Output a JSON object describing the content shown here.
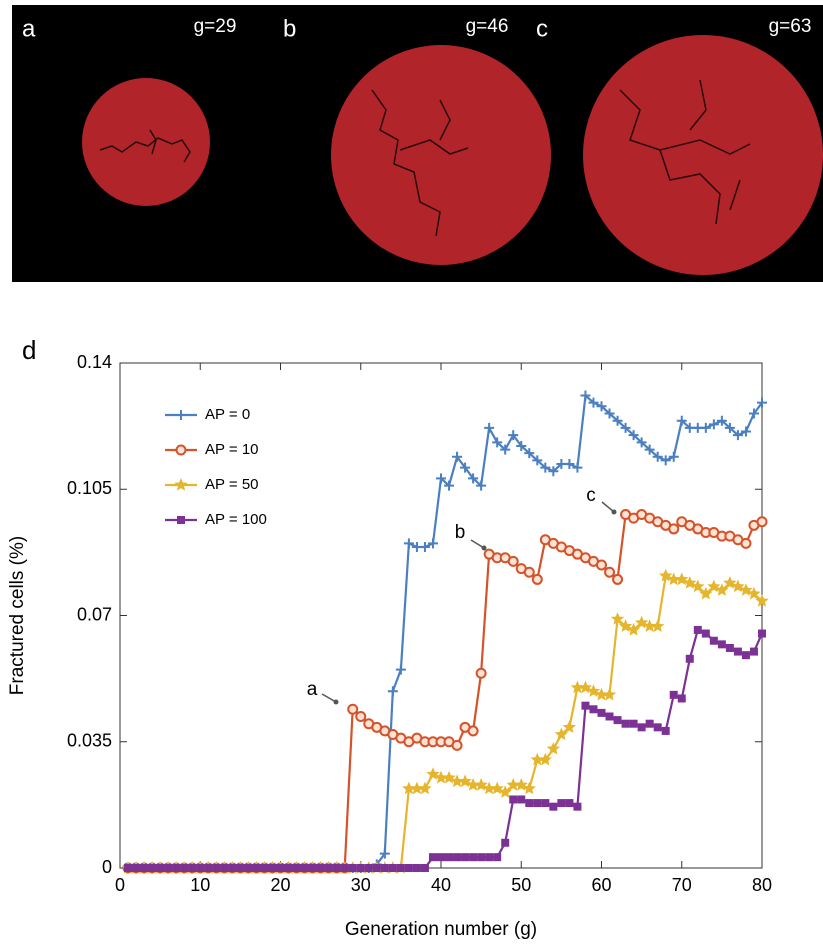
{
  "panels": [
    {
      "label": "a",
      "generation": "g=29"
    },
    {
      "label": "b",
      "generation": "g=46"
    },
    {
      "label": "c",
      "generation": "g=63"
    }
  ],
  "chart_data": {
    "type": "line",
    "panel_label": "d",
    "xlabel": "Generation number (g)",
    "ylabel": "Fractured cells (%)",
    "xlim": [
      0,
      80
    ],
    "ylim": [
      0,
      0.14
    ],
    "xticks": [
      0,
      10,
      20,
      30,
      40,
      50,
      60,
      70,
      80
    ],
    "yticks": [
      0,
      0.035,
      0.07,
      0.105,
      0.14
    ],
    "legend": "upper left",
    "annotations": [
      "a",
      "b",
      "c"
    ],
    "x": [
      1,
      2,
      3,
      4,
      5,
      6,
      7,
      8,
      9,
      10,
      11,
      12,
      13,
      14,
      15,
      16,
      17,
      18,
      19,
      20,
      21,
      22,
      23,
      24,
      25,
      26,
      27,
      28,
      29,
      30,
      31,
      32,
      33,
      34,
      35,
      36,
      37,
      38,
      39,
      40,
      41,
      42,
      43,
      44,
      45,
      46,
      47,
      48,
      49,
      50,
      51,
      52,
      53,
      54,
      55,
      56,
      57,
      58,
      59,
      60,
      61,
      62,
      63,
      64,
      65,
      66,
      67,
      68,
      69,
      70,
      71,
      72,
      73,
      74,
      75,
      76,
      77,
      78,
      79,
      80
    ],
    "series": [
      {
        "name": "AP = 0",
        "color": "#4a7fc1",
        "marker": "plus",
        "values": [
          0,
          0,
          0,
          0,
          0,
          0,
          0,
          0,
          0,
          0,
          0,
          0,
          0,
          0,
          0,
          0,
          0,
          0,
          0,
          0,
          0,
          0,
          0,
          0,
          0,
          0,
          0,
          0,
          0,
          0,
          0,
          0.001,
          0.004,
          0.049,
          0.055,
          0.09,
          0.089,
          0.089,
          0.09,
          0.108,
          0.106,
          0.114,
          0.111,
          0.108,
          0.106,
          0.122,
          0.118,
          0.116,
          0.12,
          0.117,
          0.115,
          0.113,
          0.111,
          0.11,
          0.112,
          0.112,
          0.111,
          0.131,
          0.129,
          0.128,
          0.126,
          0.124,
          0.122,
          0.12,
          0.118,
          0.116,
          0.114,
          0.113,
          0.114,
          0.124,
          0.122,
          0.122,
          0.122,
          0.123,
          0.124,
          0.122,
          0.12,
          0.121,
          0.126,
          0.129
        ]
      },
      {
        "name": "AP = 10",
        "color": "#d4532a",
        "marker": "circle",
        "values": [
          0,
          0,
          0,
          0,
          0,
          0,
          0,
          0,
          0,
          0,
          0,
          0,
          0,
          0,
          0,
          0,
          0,
          0,
          0,
          0,
          0,
          0,
          0,
          0,
          0,
          0,
          0,
          0,
          0.044,
          0.042,
          0.04,
          0.039,
          0.038,
          0.037,
          0.036,
          0.035,
          0.036,
          0.035,
          0.035,
          0.035,
          0.035,
          0.034,
          0.039,
          0.038,
          0.054,
          0.087,
          0.086,
          0.086,
          0.085,
          0.083,
          0.082,
          0.08,
          0.091,
          0.09,
          0.089,
          0.088,
          0.087,
          0.086,
          0.085,
          0.084,
          0.082,
          0.08,
          0.098,
          0.097,
          0.098,
          0.097,
          0.096,
          0.095,
          0.094,
          0.096,
          0.095,
          0.094,
          0.093,
          0.093,
          0.092,
          0.092,
          0.091,
          0.09,
          0.095,
          0.096
        ]
      },
      {
        "name": "AP = 50",
        "color": "#e6b52e",
        "marker": "star",
        "values": [
          0,
          0,
          0,
          0,
          0,
          0,
          0,
          0,
          0,
          0,
          0,
          0,
          0,
          0,
          0,
          0,
          0,
          0,
          0,
          0,
          0,
          0,
          0,
          0,
          0,
          0,
          0,
          0,
          0,
          0,
          0,
          0,
          0,
          0,
          0,
          0.022,
          0.022,
          0.022,
          0.026,
          0.025,
          0.025,
          0.024,
          0.024,
          0.023,
          0.023,
          0.022,
          0.022,
          0.021,
          0.023,
          0.023,
          0.022,
          0.03,
          0.03,
          0.033,
          0.037,
          0.039,
          0.05,
          0.05,
          0.049,
          0.048,
          0.048,
          0.069,
          0.067,
          0.066,
          0.068,
          0.067,
          0.067,
          0.081,
          0.08,
          0.08,
          0.079,
          0.078,
          0.076,
          0.078,
          0.077,
          0.079,
          0.078,
          0.077,
          0.076,
          0.074
        ]
      },
      {
        "name": "AP = 100",
        "color": "#7b3294",
        "marker": "square",
        "values": [
          0,
          0,
          0,
          0,
          0,
          0,
          0,
          0,
          0,
          0,
          0,
          0,
          0,
          0,
          0,
          0,
          0,
          0,
          0,
          0,
          0,
          0,
          0,
          0,
          0,
          0,
          0,
          0,
          0,
          0,
          0,
          0,
          0,
          0,
          0,
          0,
          0,
          0,
          0.003,
          0.003,
          0.003,
          0.003,
          0.003,
          0.003,
          0.003,
          0.003,
          0.003,
          0.007,
          0.019,
          0.019,
          0.018,
          0.018,
          0.018,
          0.017,
          0.018,
          0.018,
          0.017,
          0.045,
          0.044,
          0.043,
          0.042,
          0.041,
          0.04,
          0.04,
          0.039,
          0.04,
          0.039,
          0.038,
          0.048,
          0.047,
          0.058,
          0.066,
          0.065,
          0.063,
          0.062,
          0.061,
          0.06,
          0.059,
          0.06,
          0.065
        ]
      }
    ]
  }
}
